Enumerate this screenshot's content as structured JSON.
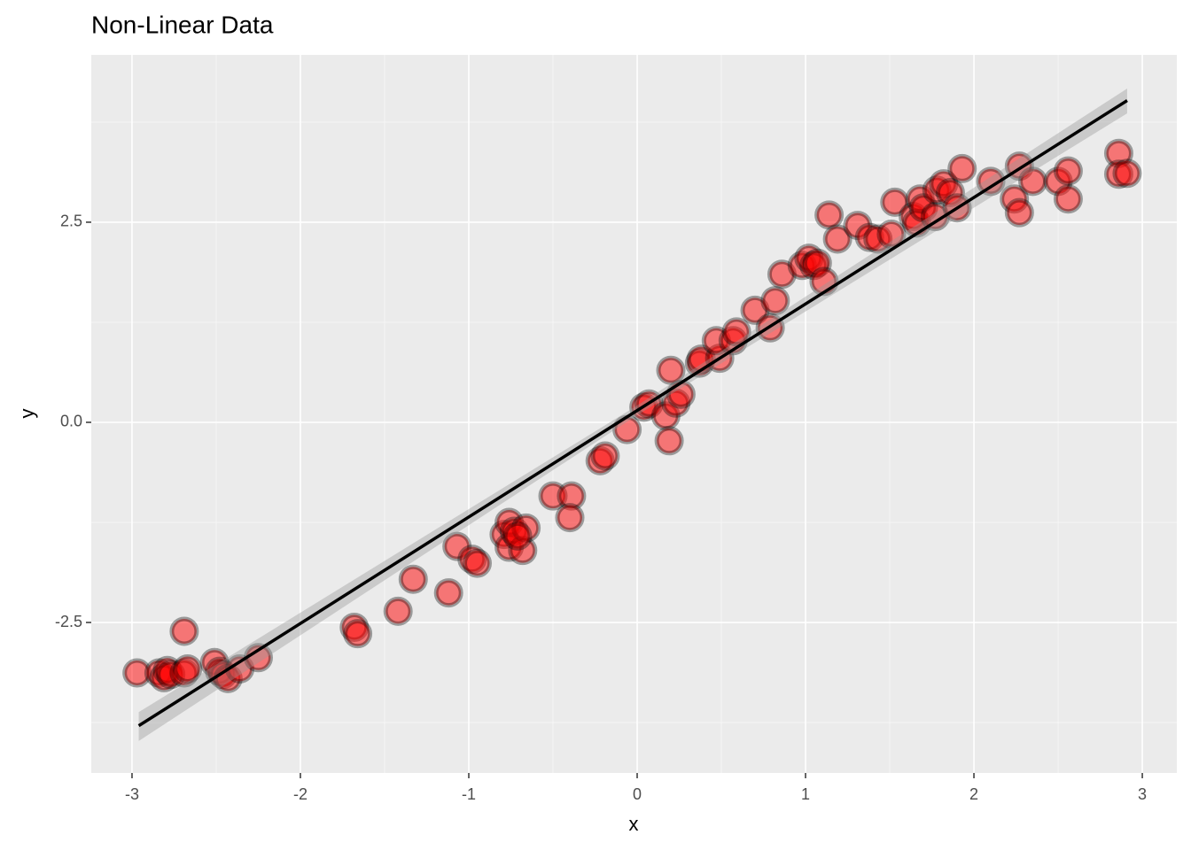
{
  "chart_data": {
    "type": "scatter",
    "title": "Non-Linear Data",
    "x_label": "x",
    "y_label": "y",
    "color": "#ff0000",
    "x": [
      -2.97,
      -2.84,
      -2.81,
      -2.79,
      -2.77,
      -2.69,
      -2.69,
      -2.67,
      -2.51,
      -2.48,
      -2.46,
      -2.43,
      -2.36,
      -2.25,
      -1.68,
      -1.66,
      -1.42,
      -1.33,
      -1.12,
      -1.07,
      -0.98,
      -0.95,
      -0.79,
      -0.76,
      -0.76,
      -0.73,
      -0.68,
      -0.66,
      -0.71,
      -0.5,
      -0.39,
      -0.4,
      -0.22,
      -0.19,
      -0.06,
      0.04,
      0.07,
      0.17,
      0.19,
      0.2,
      0.23,
      0.26,
      0.37,
      0.38,
      0.49,
      0.47,
      0.57,
      0.59,
      0.7,
      0.79,
      0.82,
      0.86,
      0.98,
      1.02,
      1.05,
      1.07,
      1.11,
      1.14,
      1.19,
      1.31,
      1.38,
      1.43,
      1.51,
      1.53,
      1.64,
      1.66,
      1.68,
      1.7,
      1.77,
      1.78,
      1.82,
      1.86,
      1.9,
      1.93,
      2.1,
      2.24,
      2.27,
      2.27,
      2.35,
      2.5,
      2.56,
      2.56,
      2.86,
      2.86,
      2.91
    ],
    "y": [
      -3.13,
      -3.13,
      -3.19,
      -3.1,
      -3.15,
      -2.61,
      -3.13,
      -3.08,
      -3.0,
      -3.11,
      -3.15,
      -3.2,
      -3.08,
      -2.94,
      -2.56,
      -2.64,
      -2.36,
      -1.96,
      -2.13,
      -1.55,
      -1.71,
      -1.76,
      -1.4,
      -1.25,
      -1.56,
      -1.36,
      -1.6,
      -1.32,
      -1.42,
      -0.92,
      -0.92,
      -1.19,
      -0.48,
      -0.42,
      -0.09,
      0.19,
      0.23,
      0.08,
      -0.23,
      0.65,
      0.24,
      0.35,
      0.74,
      0.79,
      0.8,
      1.02,
      1.02,
      1.13,
      1.4,
      1.18,
      1.52,
      1.85,
      1.96,
      2.05,
      1.96,
      1.99,
      1.76,
      2.59,
      2.29,
      2.46,
      2.31,
      2.29,
      2.35,
      2.75,
      2.57,
      2.49,
      2.79,
      2.68,
      2.57,
      2.9,
      2.98,
      2.87,
      2.68,
      3.17,
      3.01,
      2.79,
      2.62,
      3.2,
      3.01,
      3.01,
      3.14,
      2.79,
      3.36,
      3.1,
      3.11
    ],
    "fit": {
      "color": "#000000",
      "x": [
        -2.96,
        0,
        2.91
      ],
      "y": [
        -3.79,
        0.148,
        4.02
      ],
      "lower": [
        -3.98,
        0.09,
        3.86
      ],
      "upper": [
        -3.62,
        0.21,
        4.17
      ]
    },
    "xlim": [
      -3.242,
      3.205
    ],
    "ylim": [
      -4.38,
      4.59
    ],
    "xticks": [
      -3,
      -2,
      -1,
      0,
      1,
      2,
      3
    ],
    "yticks": [
      -2.5,
      {
        "value": 0,
        "label": "0.0"
      },
      2.5
    ],
    "xminor": [
      -2.5,
      -1.5,
      -0.5,
      0.5,
      1.5,
      2.5
    ],
    "yminor": [
      -3.75,
      -1.25,
      1.25,
      3.75
    ],
    "grid": true
  }
}
